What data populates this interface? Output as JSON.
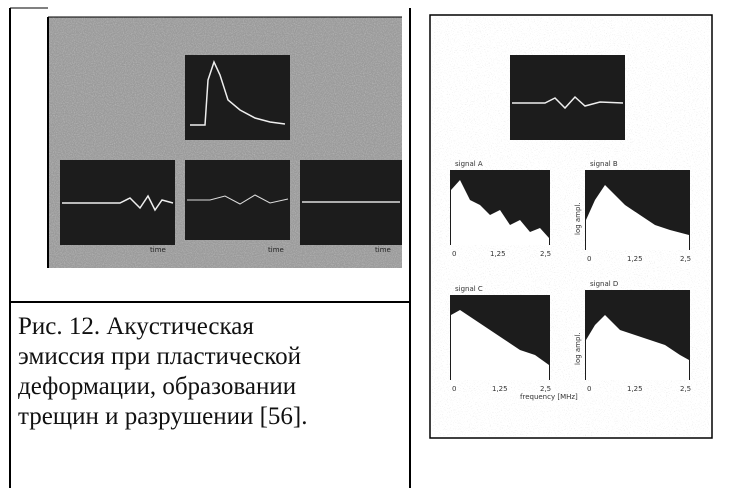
{
  "caption": {
    "lines": [
      "Рис. 12. Акустическая",
      "эмиссия при пластической",
      "деформации, образовании",
      "трещин и разрушении [56]."
    ]
  },
  "left_image": {
    "panel_labels": [
      "time",
      "time",
      "time"
    ]
  },
  "right_image": {
    "signals": [
      "signal A",
      "signal B",
      "signal C",
      "signal D"
    ],
    "axis_ticks": [
      "0",
      "1,25",
      "2,5"
    ],
    "x_label": "frequency [MHz]",
    "y_label": "log ampl."
  }
}
